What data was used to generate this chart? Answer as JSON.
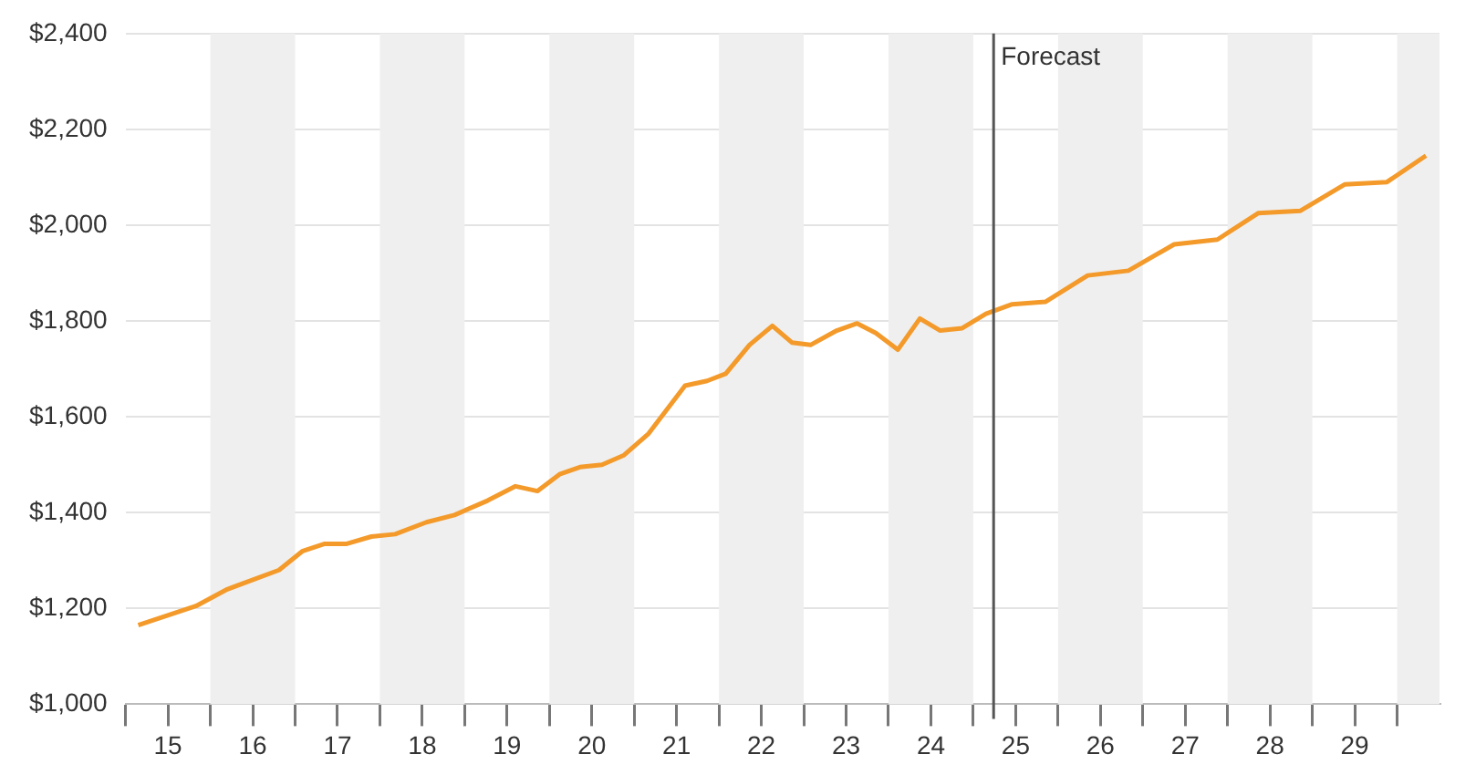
{
  "chart_data": {
    "type": "line",
    "x": [
      15.15,
      15.83,
      16.2,
      16.81,
      17.09,
      17.35,
      17.61,
      17.9,
      18.18,
      18.55,
      18.88,
      19.27,
      19.6,
      19.86,
      20.12,
      20.36,
      20.62,
      20.88,
      21.17,
      21.6,
      21.86,
      22.08,
      22.36,
      22.63,
      22.86,
      23.08,
      23.39,
      23.63,
      23.85,
      24.11,
      24.37,
      24.61,
      24.87,
      25.15,
      25.46,
      25.85,
      26.35,
      26.83,
      27.37,
      27.88,
      28.36,
      28.86,
      29.38,
      29.88,
      30.34
    ],
    "series": [
      {
        "color": "#f39a2b",
        "values": [
          1165,
          1205,
          1240,
          1280,
          1320,
          1335,
          1335,
          1350,
          1355,
          1380,
          1395,
          1425,
          1455,
          1445,
          1480,
          1495,
          1500,
          1520,
          1565,
          1665,
          1675,
          1690,
          1750,
          1790,
          1755,
          1750,
          1780,
          1795,
          1775,
          1740,
          1805,
          1780,
          1785,
          1815,
          1835,
          1840,
          1895,
          1905,
          1960,
          1970,
          2025,
          2030,
          2085,
          2090,
          2145
        ]
      }
    ],
    "xlim": [
      15,
      30.5
    ],
    "xticks": [
      {
        "value": 15,
        "label": null
      },
      {
        "value": 15.5,
        "label": "15"
      },
      {
        "value": 16,
        "label": null
      },
      {
        "value": 16.5,
        "label": "16"
      },
      {
        "value": 17,
        "label": null
      },
      {
        "value": 17.5,
        "label": "17"
      },
      {
        "value": 18,
        "label": null
      },
      {
        "value": 18.5,
        "label": "18"
      },
      {
        "value": 19,
        "label": null
      },
      {
        "value": 19.5,
        "label": "19"
      },
      {
        "value": 20,
        "label": null
      },
      {
        "value": 20.5,
        "label": "20"
      },
      {
        "value": 21,
        "label": null
      },
      {
        "value": 21.5,
        "label": "21"
      },
      {
        "value": 22,
        "label": null
      },
      {
        "value": 22.5,
        "label": "22"
      },
      {
        "value": 23,
        "label": null
      },
      {
        "value": 23.5,
        "label": "23"
      },
      {
        "value": 24,
        "label": null
      },
      {
        "value": 24.5,
        "label": "24"
      },
      {
        "value": 25,
        "label": null
      },
      {
        "value": 25.5,
        "label": "25"
      },
      {
        "value": 26,
        "label": null
      },
      {
        "value": 26.5,
        "label": "26"
      },
      {
        "value": 27,
        "label": null
      },
      {
        "value": 27.5,
        "label": "27"
      },
      {
        "value": 28,
        "label": null
      },
      {
        "value": 28.5,
        "label": "28"
      },
      {
        "value": 29,
        "label": null
      },
      {
        "value": 29.5,
        "label": "29"
      },
      {
        "value": 30,
        "label": null
      }
    ],
    "ylim": [
      1000,
      2400
    ],
    "yticks": [
      {
        "value": 1000,
        "label": "$1,000"
      },
      {
        "value": 1200,
        "label": "$1,200"
      },
      {
        "value": 1400,
        "label": "$1,400"
      },
      {
        "value": 1600,
        "label": "$1,600"
      },
      {
        "value": 1800,
        "label": "$1,800"
      },
      {
        "value": 2000,
        "label": "$2,000"
      },
      {
        "value": 2200,
        "label": "$2,200"
      },
      {
        "value": 2400,
        "label": "$2,400"
      }
    ],
    "grid": "y",
    "legend": false,
    "marker": "none",
    "line_style": "solid",
    "ref_lines": [
      {
        "axis": "x",
        "value": 25.24,
        "label": "Forecast",
        "color": "#555555"
      }
    ],
    "bands": [
      {
        "axis": "x",
        "from": 16,
        "to": 17,
        "color": "#efefef"
      },
      {
        "axis": "x",
        "from": 18,
        "to": 19,
        "color": "#efefef"
      },
      {
        "axis": "x",
        "from": 20,
        "to": 21,
        "color": "#efefef"
      },
      {
        "axis": "x",
        "from": 22,
        "to": 23,
        "color": "#efefef"
      },
      {
        "axis": "x",
        "from": 24,
        "to": 25,
        "color": "#efefef"
      },
      {
        "axis": "x",
        "from": 26,
        "to": 27,
        "color": "#efefef"
      },
      {
        "axis": "x",
        "from": 28,
        "to": 29,
        "color": "#efefef"
      },
      {
        "axis": "x",
        "from": 30,
        "to": 30.5,
        "color": "#efefef"
      }
    ]
  }
}
